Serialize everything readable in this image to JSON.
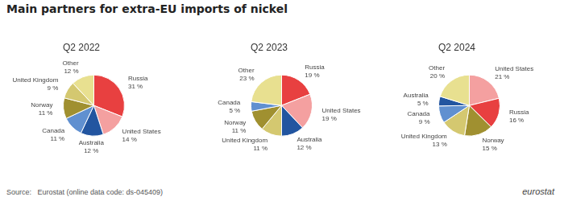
{
  "title": "Main partners for extra-EU imports of nickel",
  "annotations": [
    "Source:   Eurostat (online data code: ds-045409)",
    "eurostat"
  ],
  "chart_data": [
    {
      "type": "pie",
      "subtitle": "Q2 2022",
      "categories": [
        "Russia",
        "United States",
        "Australia",
        "Canada",
        "Norway",
        "United Kingdom",
        "Other"
      ],
      "values": [
        31,
        14,
        12,
        11,
        11,
        9,
        12
      ],
      "value_labels": [
        "31 %",
        "14 %",
        "12 %",
        "11 %",
        "11 %",
        "9 %",
        "12 %"
      ],
      "colors": [
        "#e84040",
        "#f4a0a0",
        "#2255a0",
        "#6090d0",
        "#a09030",
        "#d4c870",
        "#e8e090"
      ],
      "data_labels": true
    },
    {
      "type": "pie",
      "subtitle": "Q2 2023",
      "categories": [
        "Russia",
        "United States",
        "Australia",
        "United Kingdom",
        "Norway",
        "Canada",
        "Other"
      ],
      "values": [
        19,
        19,
        12,
        11,
        11,
        5,
        23
      ],
      "value_labels": [
        "19 %",
        "19 %",
        "12 %",
        "11 %",
        "11 %",
        "5 %",
        "23 %"
      ],
      "colors": [
        "#e84040",
        "#f4a0a0",
        "#2255a0",
        "#d4c870",
        "#a09030",
        "#6090d0",
        "#e8e090"
      ],
      "data_labels": true
    },
    {
      "type": "pie",
      "subtitle": "Q2 2024",
      "categories": [
        "United States",
        "Russia",
        "Norway",
        "United Kingdom",
        "Canada",
        "Australia",
        "Other"
      ],
      "values": [
        21,
        16,
        15,
        13,
        9,
        5,
        20
      ],
      "value_labels": [
        "21 %",
        "16 %",
        "15 %",
        "13 %",
        "9 %",
        "5 %",
        "20 %"
      ],
      "colors": [
        "#f4a0a0",
        "#e84040",
        "#a09030",
        "#d4c870",
        "#6090d0",
        "#2255a0",
        "#e8e090"
      ],
      "data_labels": true
    }
  ]
}
